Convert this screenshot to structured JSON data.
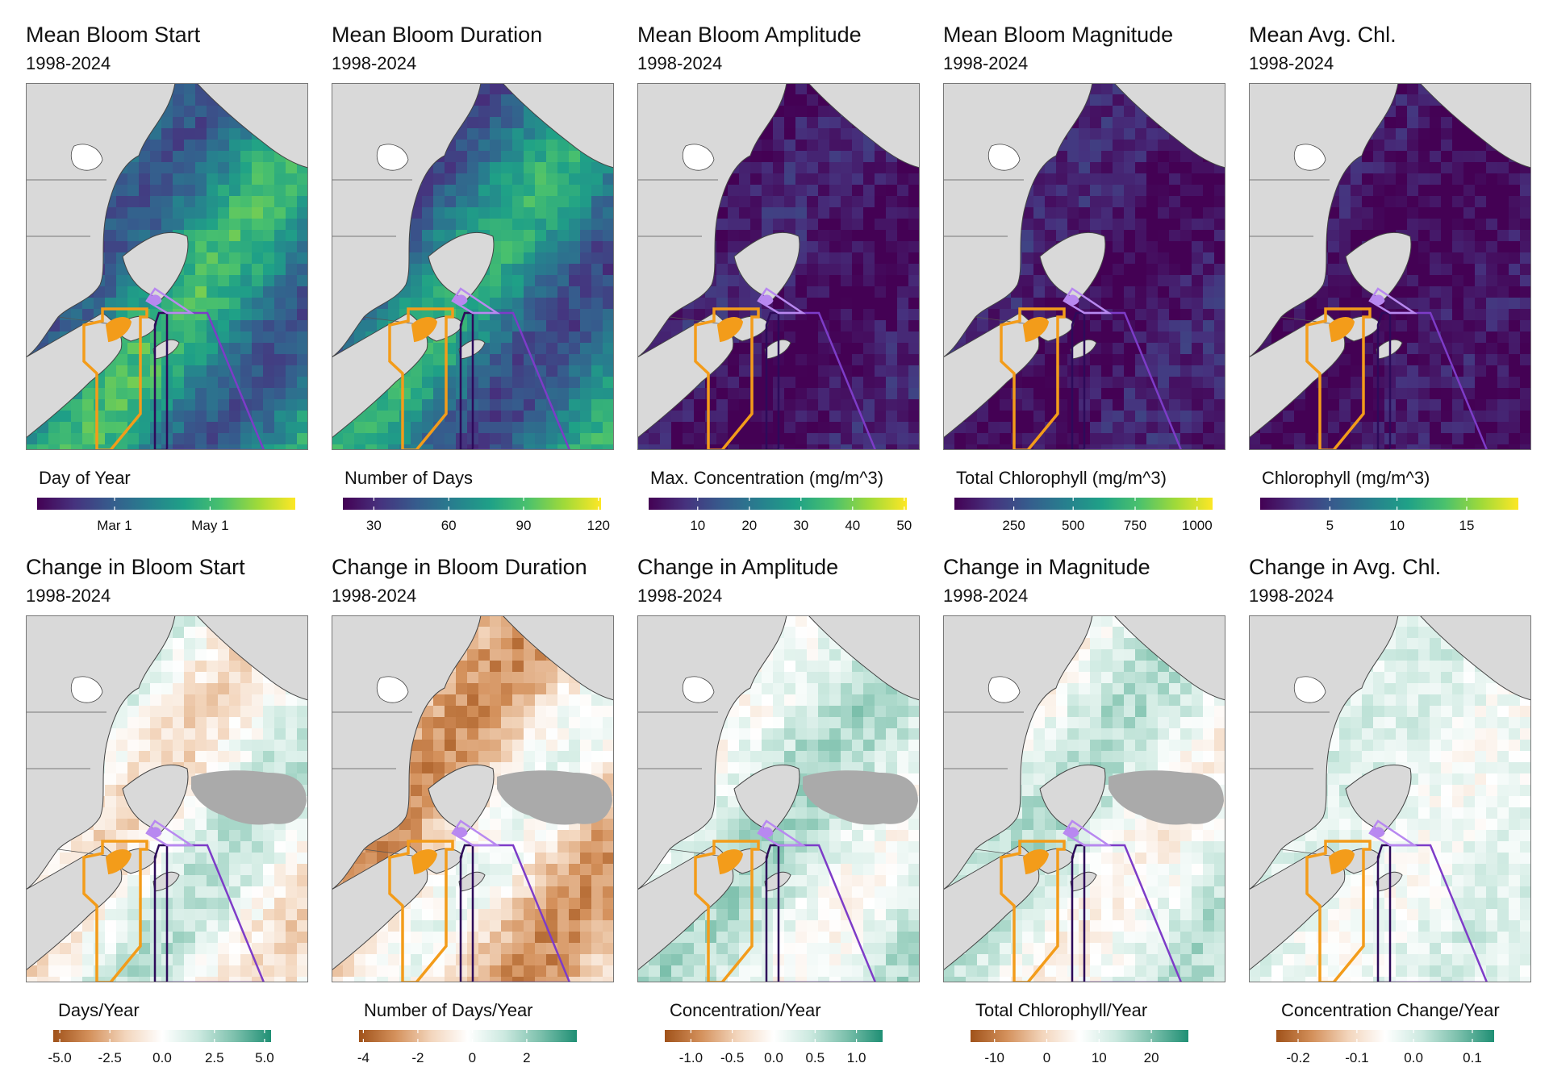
{
  "colors": {
    "land": "#d9d9d9",
    "water_blank": "#ffffff",
    "no_data": "#aaaaaa",
    "orange_region": "#f39c1a",
    "purple_region": "#7d3cc8",
    "light_purple_region": "#b888f0",
    "dark_purple_region": "#2d0a5a",
    "viridis": [
      "#440154",
      "#46327e",
      "#365c8d",
      "#277f8e",
      "#1fa187",
      "#4ac16d",
      "#a0da39",
      "#fde725"
    ],
    "diverging": [
      "#a0521a",
      "#d4915c",
      "#f3d6bd",
      "#ffffff",
      "#cce9e0",
      "#7cc0ac",
      "#1f8f74"
    ]
  },
  "panels": [
    {
      "title": "Mean Bloom Start",
      "subtitle": "1998-2024",
      "legend_title": "Day of Year",
      "scale": "viridis",
      "ticks": [
        {
          "label": "Mar 1",
          "pos": 0.3
        },
        {
          "label": "May 1",
          "pos": 0.67
        }
      ],
      "tint": [
        0.25,
        0.7
      ]
    },
    {
      "title": "Mean Bloom Duration",
      "subtitle": "1998-2024",
      "legend_title": "Number of Days",
      "scale": "viridis",
      "ticks": [
        {
          "label": "30",
          "pos": 0.12
        },
        {
          "label": "60",
          "pos": 0.41
        },
        {
          "label": "90",
          "pos": 0.7
        },
        {
          "label": "120",
          "pos": 0.99
        }
      ],
      "tint": [
        0.2,
        0.65
      ]
    },
    {
      "title": "Mean Bloom Amplitude",
      "subtitle": "1998-2024",
      "legend_title": "Max. Concentration (mg/m^3)",
      "scale": "viridis",
      "ticks": [
        {
          "label": "10",
          "pos": 0.19
        },
        {
          "label": "20",
          "pos": 0.39
        },
        {
          "label": "30",
          "pos": 0.59
        },
        {
          "label": "40",
          "pos": 0.79
        },
        {
          "label": "50",
          "pos": 0.99
        }
      ],
      "tint": [
        0.0,
        0.12
      ]
    },
    {
      "title": "Mean Bloom Magnitude",
      "subtitle": "1998-2024",
      "legend_title": "Total Chlorophyll (mg/m^3)",
      "scale": "viridis",
      "ticks": [
        {
          "label": "250",
          "pos": 0.23
        },
        {
          "label": "500",
          "pos": 0.46
        },
        {
          "label": "750",
          "pos": 0.7
        },
        {
          "label": "1000",
          "pos": 0.94
        }
      ],
      "tint": [
        0.0,
        0.12
      ]
    },
    {
      "title": "Mean Avg. Chl.",
      "subtitle": "1998-2024",
      "legend_title": "Chlorophyll (mg/m^3)",
      "scale": "viridis",
      "ticks": [
        {
          "label": "5",
          "pos": 0.27
        },
        {
          "label": "10",
          "pos": 0.53
        },
        {
          "label": "15",
          "pos": 0.8
        }
      ],
      "tint": [
        0.0,
        0.08
      ]
    },
    {
      "title": "Change in Bloom Start",
      "subtitle": "1998-2024",
      "legend_title": "Days/Year",
      "scale": "diverging",
      "ticks": [
        {
          "label": "-5.0",
          "pos": 0.03
        },
        {
          "label": "-2.5",
          "pos": 0.26
        },
        {
          "label": "0.0",
          "pos": 0.5
        },
        {
          "label": "2.5",
          "pos": 0.74
        },
        {
          "label": "5.0",
          "pos": 0.97
        }
      ],
      "tint": [
        0.35,
        0.7
      ],
      "nodata": true
    },
    {
      "title": "Change in Bloom Duration",
      "subtitle": "1998-2024",
      "legend_title": "Number of Days/Year",
      "scale": "diverging",
      "ticks": [
        {
          "label": "-4",
          "pos": 0.02
        },
        {
          "label": "-2",
          "pos": 0.27
        },
        {
          "label": "0",
          "pos": 0.52
        },
        {
          "label": "2",
          "pos": 0.77
        }
      ],
      "tint": [
        0.15,
        0.55
      ],
      "nodata": true
    },
    {
      "title": "Change in Amplitude",
      "subtitle": "1998-2024",
      "legend_title": "Concentration/Year",
      "scale": "diverging",
      "ticks": [
        {
          "label": "-1.0",
          "pos": 0.12
        },
        {
          "label": "-0.5",
          "pos": 0.31
        },
        {
          "label": "0.0",
          "pos": 0.5
        },
        {
          "label": "0.5",
          "pos": 0.69
        },
        {
          "label": "1.0",
          "pos": 0.88
        }
      ],
      "tint": [
        0.5,
        0.75
      ],
      "nodata": true
    },
    {
      "title": "Change in Magnitude",
      "subtitle": "1998-2024",
      "legend_title": "Total Chlorophyll/Year",
      "scale": "diverging",
      "ticks": [
        {
          "label": "-10",
          "pos": 0.11
        },
        {
          "label": "0",
          "pos": 0.35
        },
        {
          "label": "10",
          "pos": 0.59
        },
        {
          "label": "20",
          "pos": 0.83
        }
      ],
      "tint": [
        0.45,
        0.72
      ],
      "nodata": true
    },
    {
      "title": "Change in Avg. Chl.",
      "subtitle": "1998-2024",
      "legend_title": "Concentration Change/Year",
      "scale": "diverging",
      "ticks": [
        {
          "label": "-0.2",
          "pos": 0.1
        },
        {
          "label": "-0.1",
          "pos": 0.37
        },
        {
          "label": "0.0",
          "pos": 0.63
        },
        {
          "label": "0.1",
          "pos": 0.9
        }
      ],
      "tint": [
        0.52,
        0.62
      ]
    }
  ]
}
